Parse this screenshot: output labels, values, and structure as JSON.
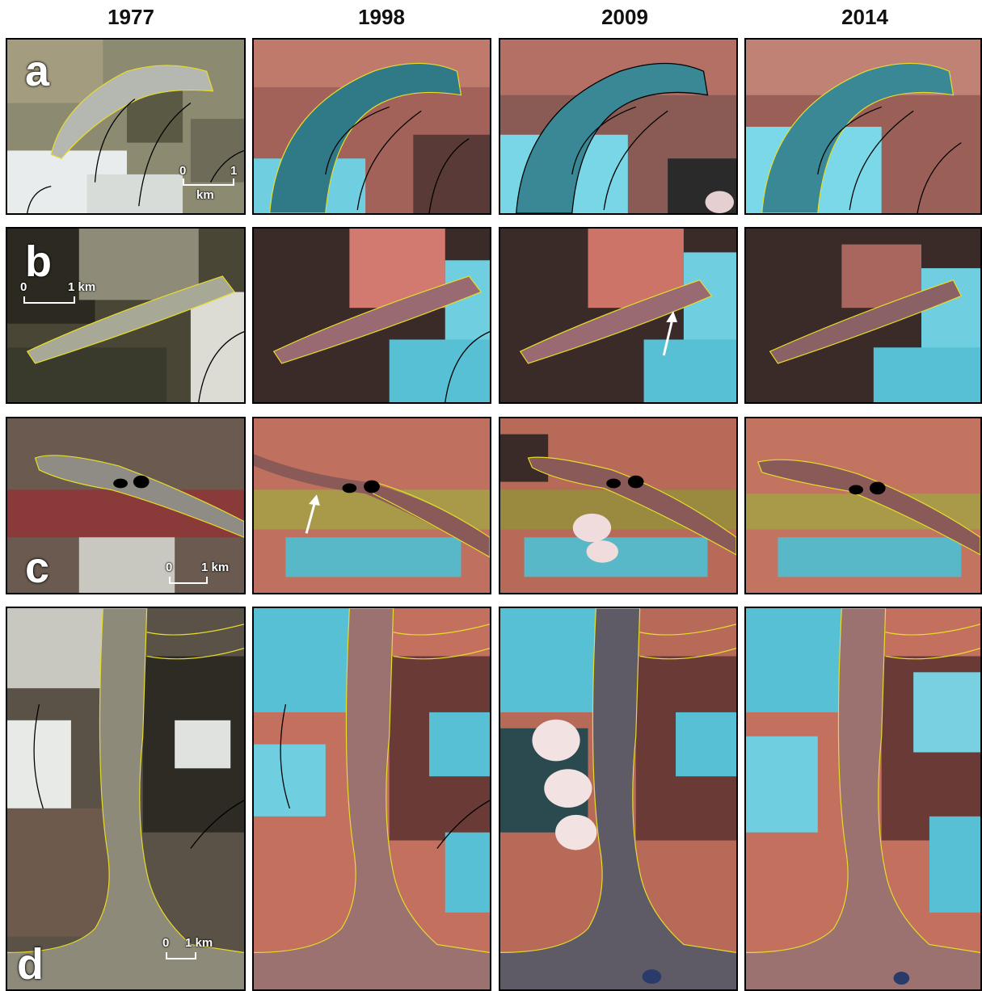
{
  "years": [
    "1977",
    "1998",
    "2009",
    "2014"
  ],
  "panel_letters": [
    "a",
    "b",
    "c",
    "d"
  ],
  "scalebars": {
    "a": {
      "start": "0",
      "end": "1",
      "unit": "km"
    },
    "b": {
      "start": "0",
      "end": "1 km"
    },
    "c": {
      "start": "0",
      "end": "1 km"
    },
    "d": {
      "start": "0",
      "end": "1 km"
    }
  },
  "colors": {
    "outline_debris": "#e6dd2a",
    "outline_clean": "#000000",
    "marker_arrow": "#ffffff",
    "snow_cyan": "#58c8dc",
    "terrain_pink": "#c87a6e"
  }
}
